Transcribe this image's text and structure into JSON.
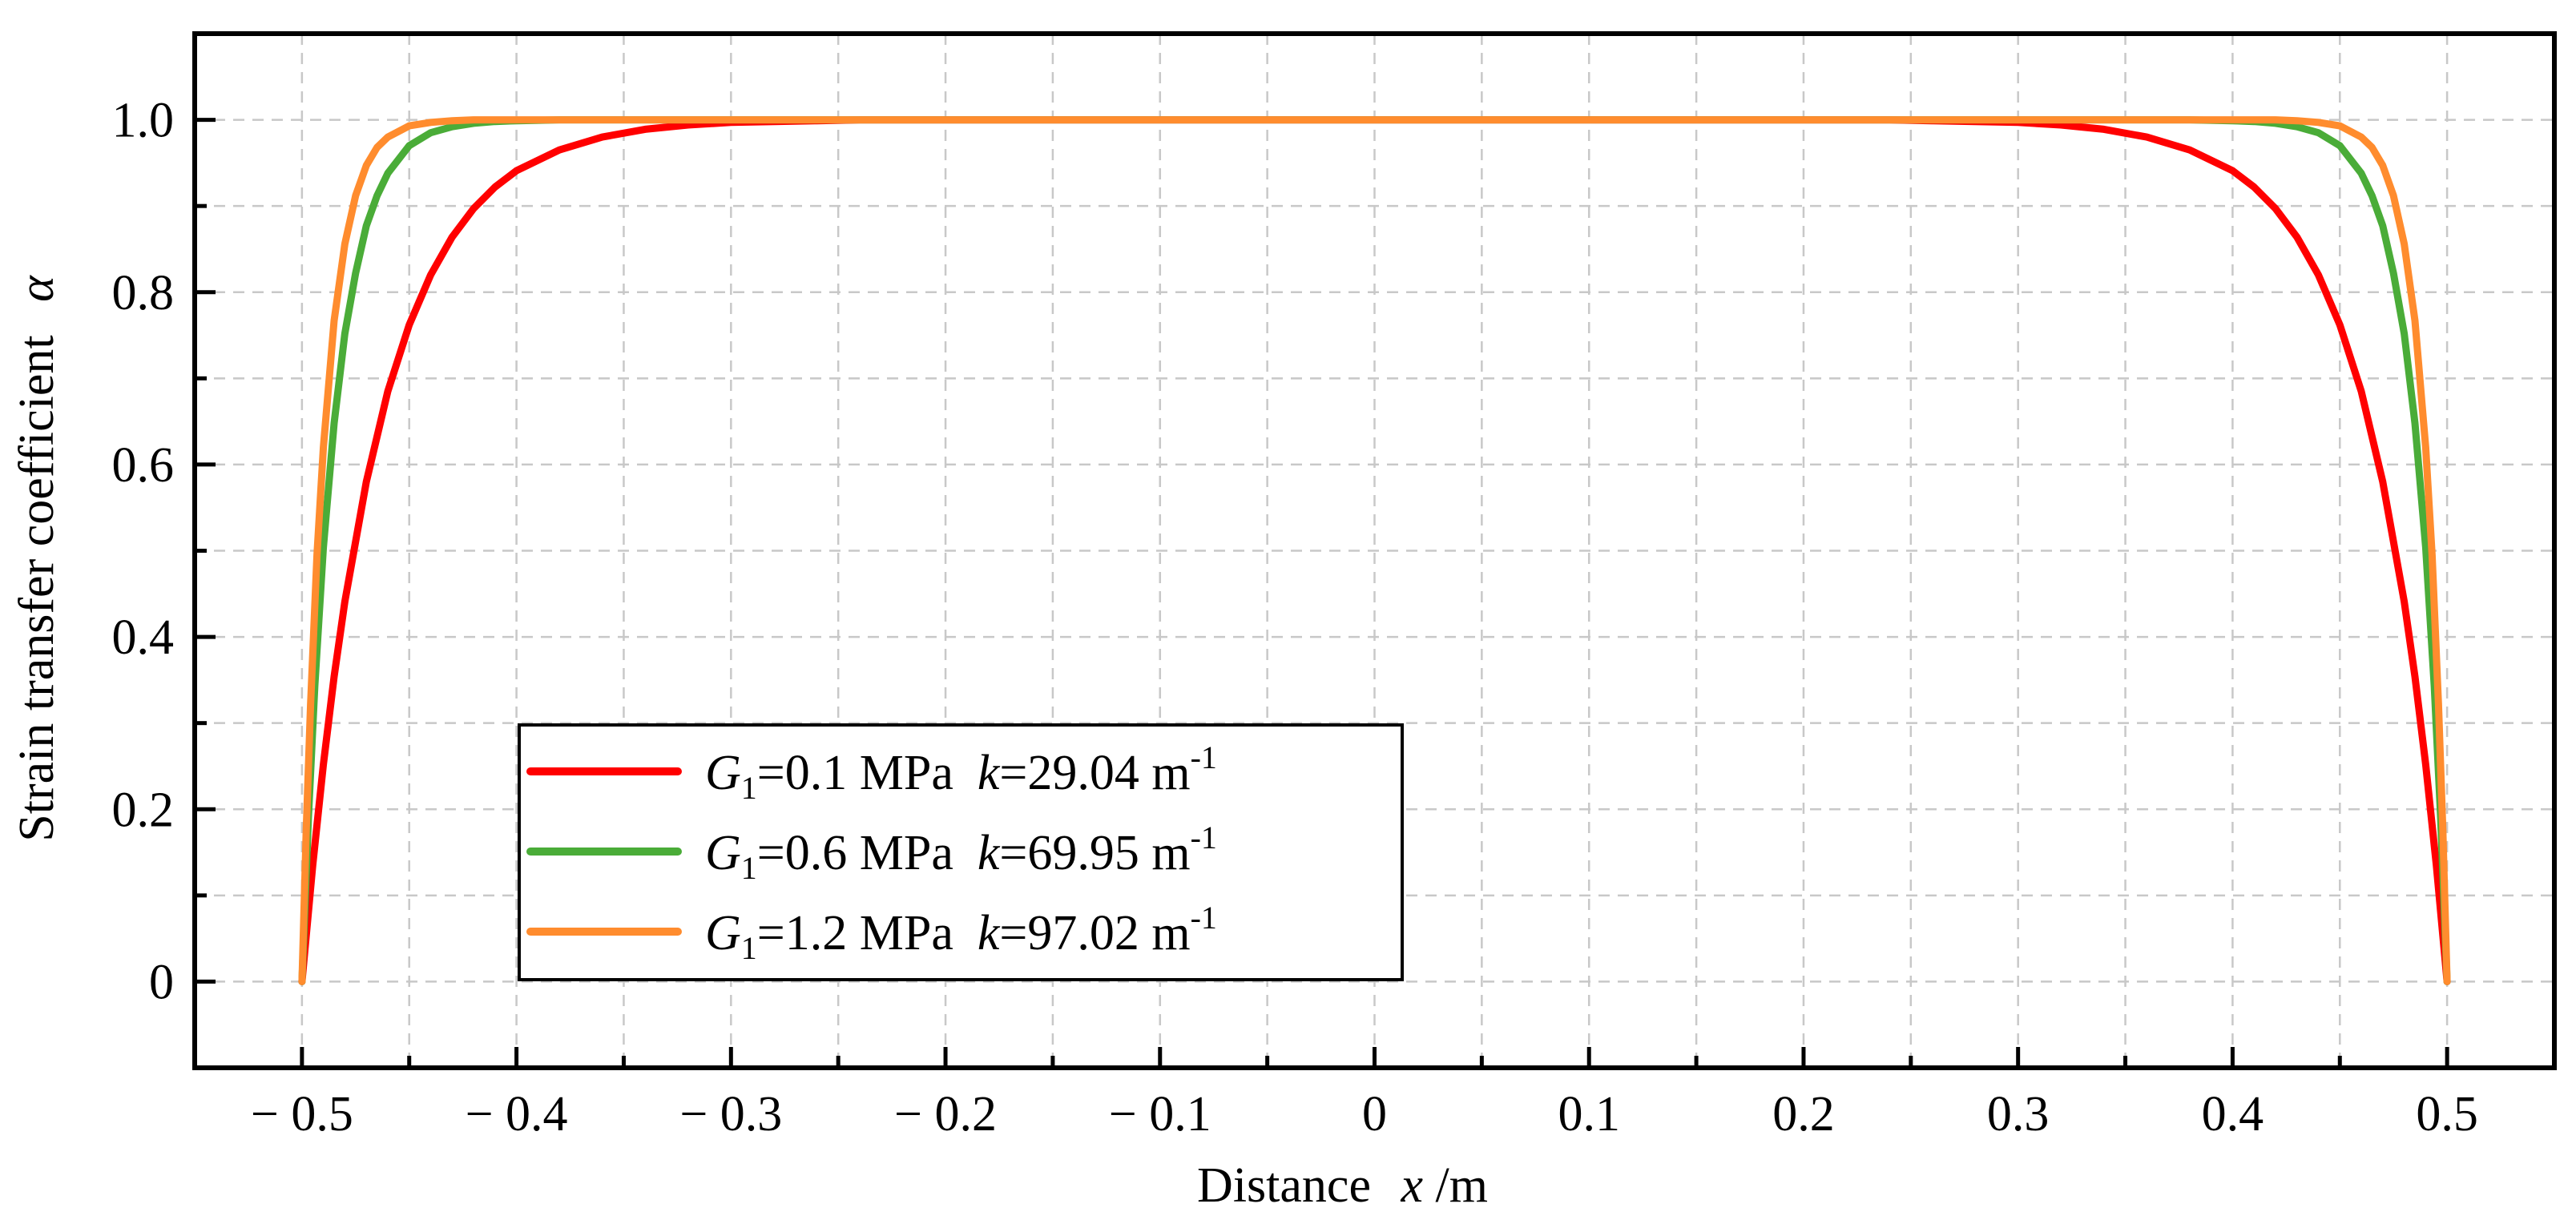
{
  "chart_data": {
    "type": "line",
    "title": "",
    "xlabel": "Distance",
    "xlabel_var": "x",
    "xlabel_unit": "/m",
    "ylabel": "Strain transfer coefficient",
    "ylabel_var": "α",
    "xlim": [
      -0.55,
      0.55
    ],
    "ylim": [
      -0.1,
      1.1
    ],
    "x_ticks": [
      -0.5,
      -0.4,
      -0.3,
      -0.2,
      -0.1,
      0,
      0.1,
      0.2,
      0.3,
      0.4,
      0.5
    ],
    "x_tick_labels": [
      "− 0.5",
      "− 0.4",
      "− 0.3",
      "− 0.2",
      "− 0.1",
      "0",
      "0.1",
      "0.2",
      "0.3",
      "0.4",
      "0.5"
    ],
    "y_ticks": [
      0,
      0.2,
      0.4,
      0.6,
      0.8,
      1.0
    ],
    "y_tick_labels": [
      "0",
      "0.2",
      "0.4",
      "0.6",
      "0.8",
      "1.0"
    ],
    "grid": true,
    "legend_position": "lower-left",
    "series": [
      {
        "name": "G1=0.1 MPa k=29.04 m-1",
        "G_label": "G",
        "G_sub": "1",
        "G_value": "=0.1 MPa",
        "k_label": "k",
        "k_value": "=29.04 m",
        "k_sup": "-1",
        "k": 29.04,
        "color": "#ff0000",
        "x": [
          -0.5,
          -0.495,
          -0.49,
          -0.485,
          -0.48,
          -0.47,
          -0.46,
          -0.45,
          -0.44,
          -0.43,
          -0.42,
          -0.41,
          -0.4,
          -0.38,
          -0.36,
          -0.34,
          -0.32,
          -0.3,
          -0.28,
          -0.26,
          -0.24,
          -0.2,
          -0.1,
          0,
          0.1,
          0.2,
          0.24,
          0.26,
          0.28,
          0.3,
          0.32,
          0.34,
          0.36,
          0.38,
          0.4,
          0.41,
          0.42,
          0.43,
          0.44,
          0.45,
          0.46,
          0.47,
          0.48,
          0.485,
          0.49,
          0.495,
          0.5
        ],
        "y": [
          0,
          0.135,
          0.252,
          0.354,
          0.441,
          0.58,
          0.685,
          0.762,
          0.82,
          0.864,
          0.897,
          0.922,
          0.941,
          0.965,
          0.98,
          0.989,
          0.994,
          0.997,
          0.998,
          0.999,
          1.0,
          1.0,
          1.0,
          1.0,
          1.0,
          1.0,
          1.0,
          0.999,
          0.998,
          0.997,
          0.994,
          0.989,
          0.98,
          0.965,
          0.941,
          0.922,
          0.897,
          0.864,
          0.82,
          0.762,
          0.685,
          0.58,
          0.441,
          0.354,
          0.252,
          0.135,
          0
        ]
      },
      {
        "name": "G1=0.6 MPa k=69.95 m-1",
        "G_label": "G",
        "G_sub": "1",
        "G_value": "=0.6 MPa",
        "k_label": "k",
        "k_value": "=69.95 m",
        "k_sup": "-1",
        "k": 69.95,
        "color": "#4aac38",
        "x": [
          -0.5,
          -0.497,
          -0.494,
          -0.49,
          -0.485,
          -0.48,
          -0.475,
          -0.47,
          -0.465,
          -0.46,
          -0.45,
          -0.44,
          -0.43,
          -0.42,
          -0.41,
          -0.4,
          -0.38,
          -0.36,
          -0.3,
          -0.2,
          0,
          0.2,
          0.3,
          0.36,
          0.38,
          0.4,
          0.41,
          0.42,
          0.43,
          0.44,
          0.45,
          0.46,
          0.465,
          0.47,
          0.475,
          0.48,
          0.485,
          0.49,
          0.494,
          0.497,
          0.5
        ],
        "y": [
          0,
          0.19,
          0.343,
          0.504,
          0.648,
          0.752,
          0.822,
          0.877,
          0.912,
          0.938,
          0.97,
          0.985,
          0.992,
          0.996,
          0.998,
          0.999,
          1.0,
          1.0,
          1.0,
          1.0,
          1.0,
          1.0,
          1.0,
          1.0,
          1.0,
          0.999,
          0.998,
          0.996,
          0.992,
          0.985,
          0.97,
          0.938,
          0.912,
          0.877,
          0.822,
          0.752,
          0.648,
          0.504,
          0.343,
          0.19,
          0
        ]
      },
      {
        "name": "G1=1.2 MPa k=97.02 m-1",
        "G_label": "G",
        "G_sub": "1",
        "G_value": "=1.2 MPa",
        "k_label": "k",
        "k_value": "=97.02 m",
        "k_sup": "-1",
        "k": 97.02,
        "color": "#ff8c2e",
        "x": [
          -0.5,
          -0.498,
          -0.496,
          -0.493,
          -0.49,
          -0.485,
          -0.48,
          -0.475,
          -0.47,
          -0.465,
          -0.46,
          -0.45,
          -0.44,
          -0.43,
          -0.42,
          -0.41,
          -0.4,
          -0.3,
          0,
          0.3,
          0.4,
          0.41,
          0.42,
          0.43,
          0.44,
          0.45,
          0.46,
          0.465,
          0.47,
          0.475,
          0.48,
          0.485,
          0.49,
          0.493,
          0.496,
          0.498,
          0.5
        ],
        "y": [
          0,
          0.176,
          0.321,
          0.495,
          0.62,
          0.767,
          0.856,
          0.912,
          0.947,
          0.968,
          0.98,
          0.993,
          0.997,
          0.999,
          1.0,
          1.0,
          1.0,
          1.0,
          1.0,
          1.0,
          1.0,
          1.0,
          1.0,
          0.999,
          0.997,
          0.993,
          0.98,
          0.968,
          0.947,
          0.912,
          0.856,
          0.767,
          0.62,
          0.495,
          0.321,
          0.176,
          0
        ]
      }
    ]
  }
}
